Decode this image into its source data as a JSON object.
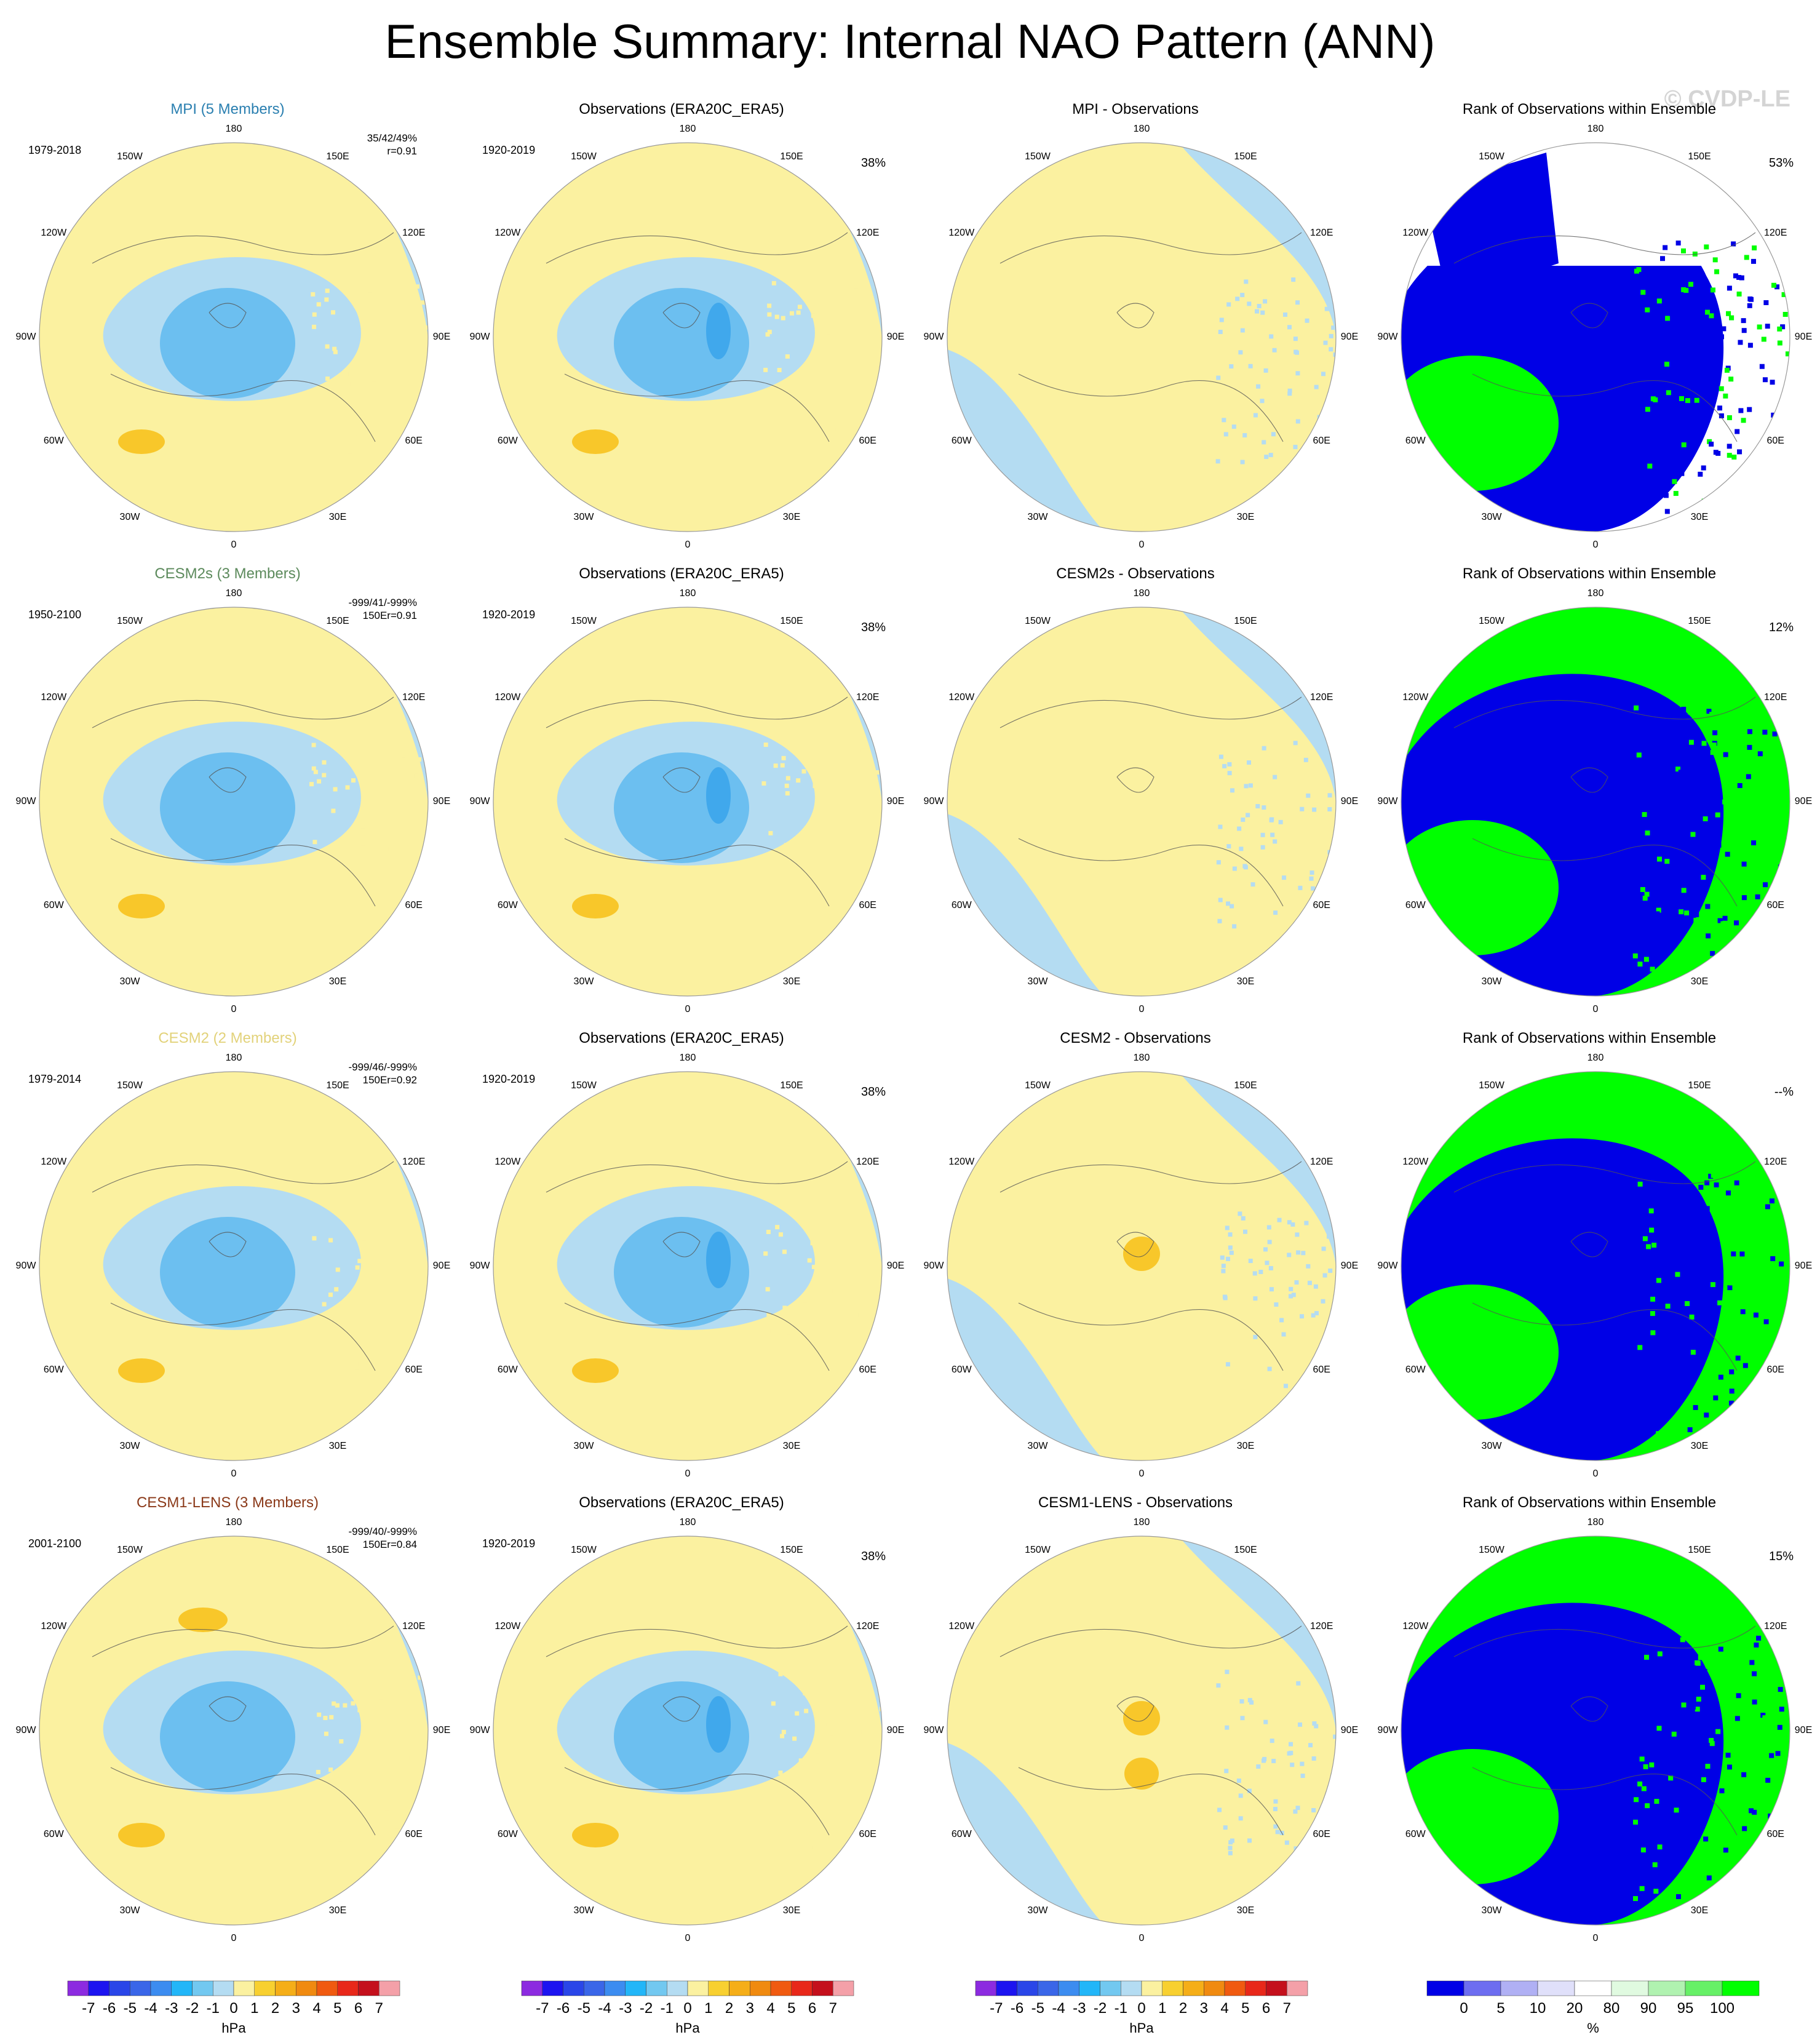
{
  "title": "Ensemble Summary: Internal NAO Pattern (ANN)",
  "copyright": "© CVDP-LE",
  "colors": {
    "neg1": "#b4dcf2",
    "neg2": "#6cbff0",
    "neg3": "#40a8ec",
    "pos1": "#fbf1a0",
    "pos2": "#f8c72a",
    "rank_low": "#0000e6",
    "rank_mid": "#ffffff",
    "rank_high": "#00ff00",
    "rank_highpale": "#e6fae6"
  },
  "lon_labels": [
    "180",
    "150E",
    "120E",
    "90E",
    "60E",
    "30E",
    "0",
    "30W",
    "60W",
    "90W",
    "120W",
    "150W"
  ],
  "rows": [
    {
      "model": {
        "title": "MPI (5 Members)",
        "title_color": "#2a7fb0",
        "period": "1979-2018",
        "ens_line1": "35/42/49%",
        "ens_line2": "r=0.91"
      },
      "obs": {
        "title": "Observations (ERA20C_ERA5)",
        "period": "1920-2019",
        "pct": "38%"
      },
      "diff": {
        "title": "MPI - Observations"
      },
      "rank": {
        "title": "Rank of Observations within Ensemble",
        "pct": "53%"
      }
    },
    {
      "model": {
        "title": "CESM2s (3 Members)",
        "title_color": "#5c8a5c",
        "period": "1950-2100",
        "ens_line1": "-999/41/-999%",
        "ens_line2": "150Er=0.91"
      },
      "obs": {
        "title": "Observations (ERA20C_ERA5)",
        "period": "1920-2019",
        "pct": "38%"
      },
      "diff": {
        "title": "CESM2s - Observations"
      },
      "rank": {
        "title": "Rank of Observations within Ensemble",
        "pct": "12%"
      }
    },
    {
      "model": {
        "title": "CESM2 (2 Members)",
        "title_color": "#e2d27a",
        "period": "1979-2014",
        "ens_line1": "-999/46/-999%",
        "ens_line2": "150Er=0.92"
      },
      "obs": {
        "title": "Observations (ERA20C_ERA5)",
        "period": "1920-2019",
        "pct": "38%"
      },
      "diff": {
        "title": "CESM2 - Observations"
      },
      "rank": {
        "title": "Rank of Observations within Ensemble",
        "pct": "--%"
      }
    },
    {
      "model": {
        "title": "CESM1-LENS (3 Members)",
        "title_color": "#8b3a1a",
        "period": "2001-2100",
        "ens_line1": "-999/40/-999%",
        "ens_line2": "150Er=0.84"
      },
      "obs": {
        "title": "Observations (ERA20C_ERA5)",
        "period": "1920-2019",
        "pct": "38%"
      },
      "diff": {
        "title": "CESM1-LENS - Observations"
      },
      "rank": {
        "title": "Rank of Observations within Ensemble",
        "pct": "15%"
      }
    }
  ],
  "colorbar_hpa": {
    "labels": [
      "-7",
      "-6",
      "-5",
      "-4",
      "-3",
      "-2",
      "-1",
      "0",
      "1",
      "2",
      "3",
      "4",
      "5",
      "6",
      "7"
    ],
    "colors": [
      "#8c2be0",
      "#1c14f0",
      "#2a46e8",
      "#3a66e8",
      "#3c8cf0",
      "#22b6f8",
      "#72c8f0",
      "#b4dcf2",
      "#fbf1a0",
      "#f8d030",
      "#f5ae18",
      "#f08a10",
      "#f05a10",
      "#e8281a",
      "#c4101c",
      "#f4a0a8"
    ],
    "unit": "hPa"
  },
  "colorbar_rank": {
    "labels": [
      "0",
      "5",
      "10",
      "20",
      "80",
      "90",
      "95",
      "100"
    ],
    "colors": [
      "#0000e6",
      "#6d6df0",
      "#b0b0f4",
      "#e0e0fa",
      "#ffffff",
      "#e0fae0",
      "#b0f2b0",
      "#66f066",
      "#00ff00"
    ],
    "unit": "%"
  }
}
